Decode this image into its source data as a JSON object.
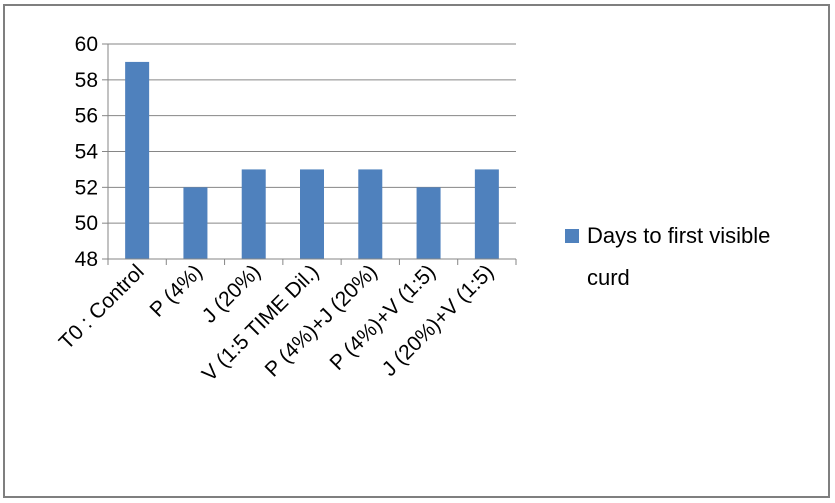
{
  "chart_data": {
    "type": "bar",
    "categories": [
      "T0 : Control",
      "P (4%)",
      "J (20%)",
      "V (1:5 TIME Dil.)",
      "P (4%)+J (20%)",
      "P (4%)+V (1:5)",
      "J (20%)+V (1:5)"
    ],
    "series": [
      {
        "name": "Days to first visible curd",
        "values": [
          59,
          52,
          53,
          53,
          53,
          52,
          53
        ]
      }
    ],
    "ylim": [
      48,
      60
    ],
    "yticks": [
      48,
      50,
      52,
      54,
      56,
      58,
      60
    ],
    "grid": true,
    "legend_position": "right",
    "colors": {
      "bar": "#4f81bd",
      "grid": "#868686",
      "axis": "#868686"
    }
  },
  "legend": {
    "line1": "Days to first visible",
    "line2": "curd"
  }
}
